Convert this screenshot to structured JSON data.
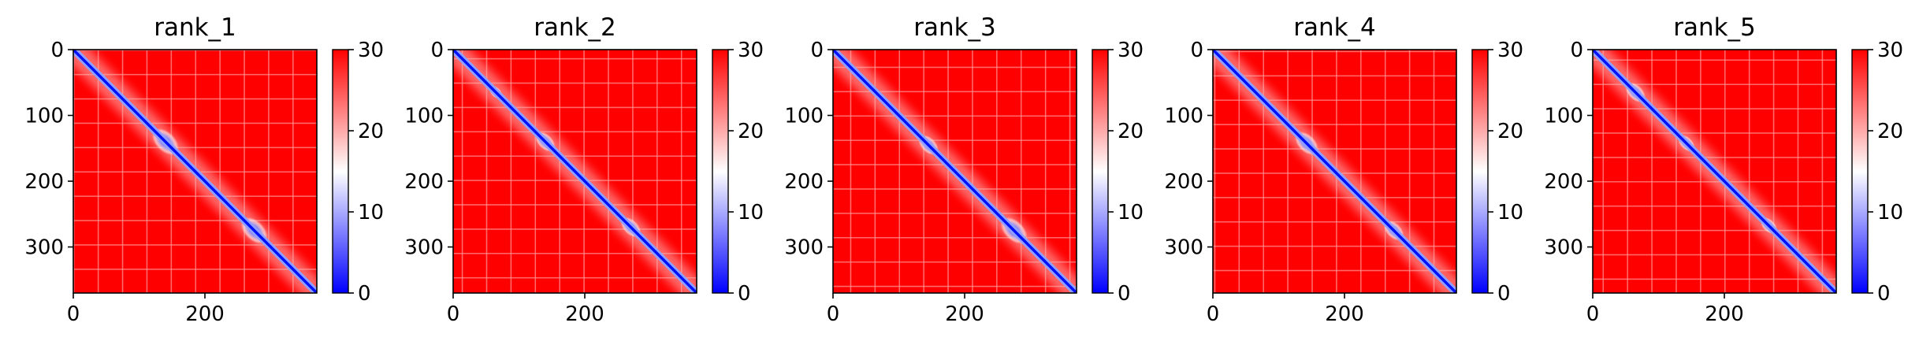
{
  "chart_data": [
    {
      "type": "heatmap",
      "title": "rank_1",
      "xticks": [
        0,
        200
      ],
      "yticks": [
        0,
        100,
        200,
        300
      ],
      "xlim": [
        0,
        370
      ],
      "ylim": [
        370,
        0
      ],
      "colorbar": {
        "ticks": [
          0,
          10,
          20,
          30
        ],
        "range": [
          0,
          30
        ],
        "colormap": [
          "#0000ff",
          "#ffffff",
          "#ff0000"
        ]
      },
      "blue_domains": [
        [
          120,
          160
        ],
        [
          255,
          295
        ]
      ]
    },
    {
      "type": "heatmap",
      "title": "rank_2",
      "xticks": [
        0,
        200
      ],
      "yticks": [
        0,
        100,
        200,
        300
      ],
      "xlim": [
        0,
        370
      ],
      "ylim": [
        370,
        0
      ],
      "colorbar": {
        "ticks": [
          0,
          10,
          20,
          30
        ],
        "range": [
          0,
          30
        ],
        "colormap": [
          "#0000ff",
          "#ffffff",
          "#ff0000"
        ]
      },
      "blue_domains": [
        [
          55,
          75
        ],
        [
          125,
          155
        ],
        [
          255,
          285
        ]
      ]
    },
    {
      "type": "heatmap",
      "title": "rank_3",
      "xticks": [
        0,
        200
      ],
      "yticks": [
        0,
        100,
        200,
        300
      ],
      "xlim": [
        0,
        370
      ],
      "ylim": [
        370,
        0
      ],
      "colorbar": {
        "ticks": [
          0,
          10,
          20,
          30
        ],
        "range": [
          0,
          30
        ],
        "colormap": [
          "#0000ff",
          "#ffffff",
          "#ff0000"
        ]
      },
      "blue_domains": [
        [
          130,
          160
        ],
        [
          255,
          295
        ]
      ]
    },
    {
      "type": "heatmap",
      "title": "rank_4",
      "xticks": [
        0,
        200
      ],
      "yticks": [
        0,
        100,
        200,
        300
      ],
      "xlim": [
        0,
        370
      ],
      "ylim": [
        370,
        0
      ],
      "colorbar": {
        "ticks": [
          0,
          10,
          20,
          30
        ],
        "range": [
          0,
          30
        ],
        "colormap": [
          "#0000ff",
          "#ffffff",
          "#ff0000"
        ]
      },
      "blue_domains": [
        [
          125,
          160
        ],
        [
          260,
          290
        ]
      ]
    },
    {
      "type": "heatmap",
      "title": "rank_5",
      "xticks": [
        0,
        200
      ],
      "yticks": [
        0,
        100,
        200,
        300
      ],
      "xlim": [
        0,
        370
      ],
      "ylim": [
        370,
        0
      ],
      "colorbar": {
        "ticks": [
          0,
          10,
          20,
          30
        ],
        "range": [
          0,
          30
        ],
        "colormap": [
          "#0000ff",
          "#ffffff",
          "#ff0000"
        ]
      },
      "blue_domains": [
        [
          50,
          80
        ],
        [
          130,
          155
        ],
        [
          255,
          280
        ]
      ]
    }
  ]
}
